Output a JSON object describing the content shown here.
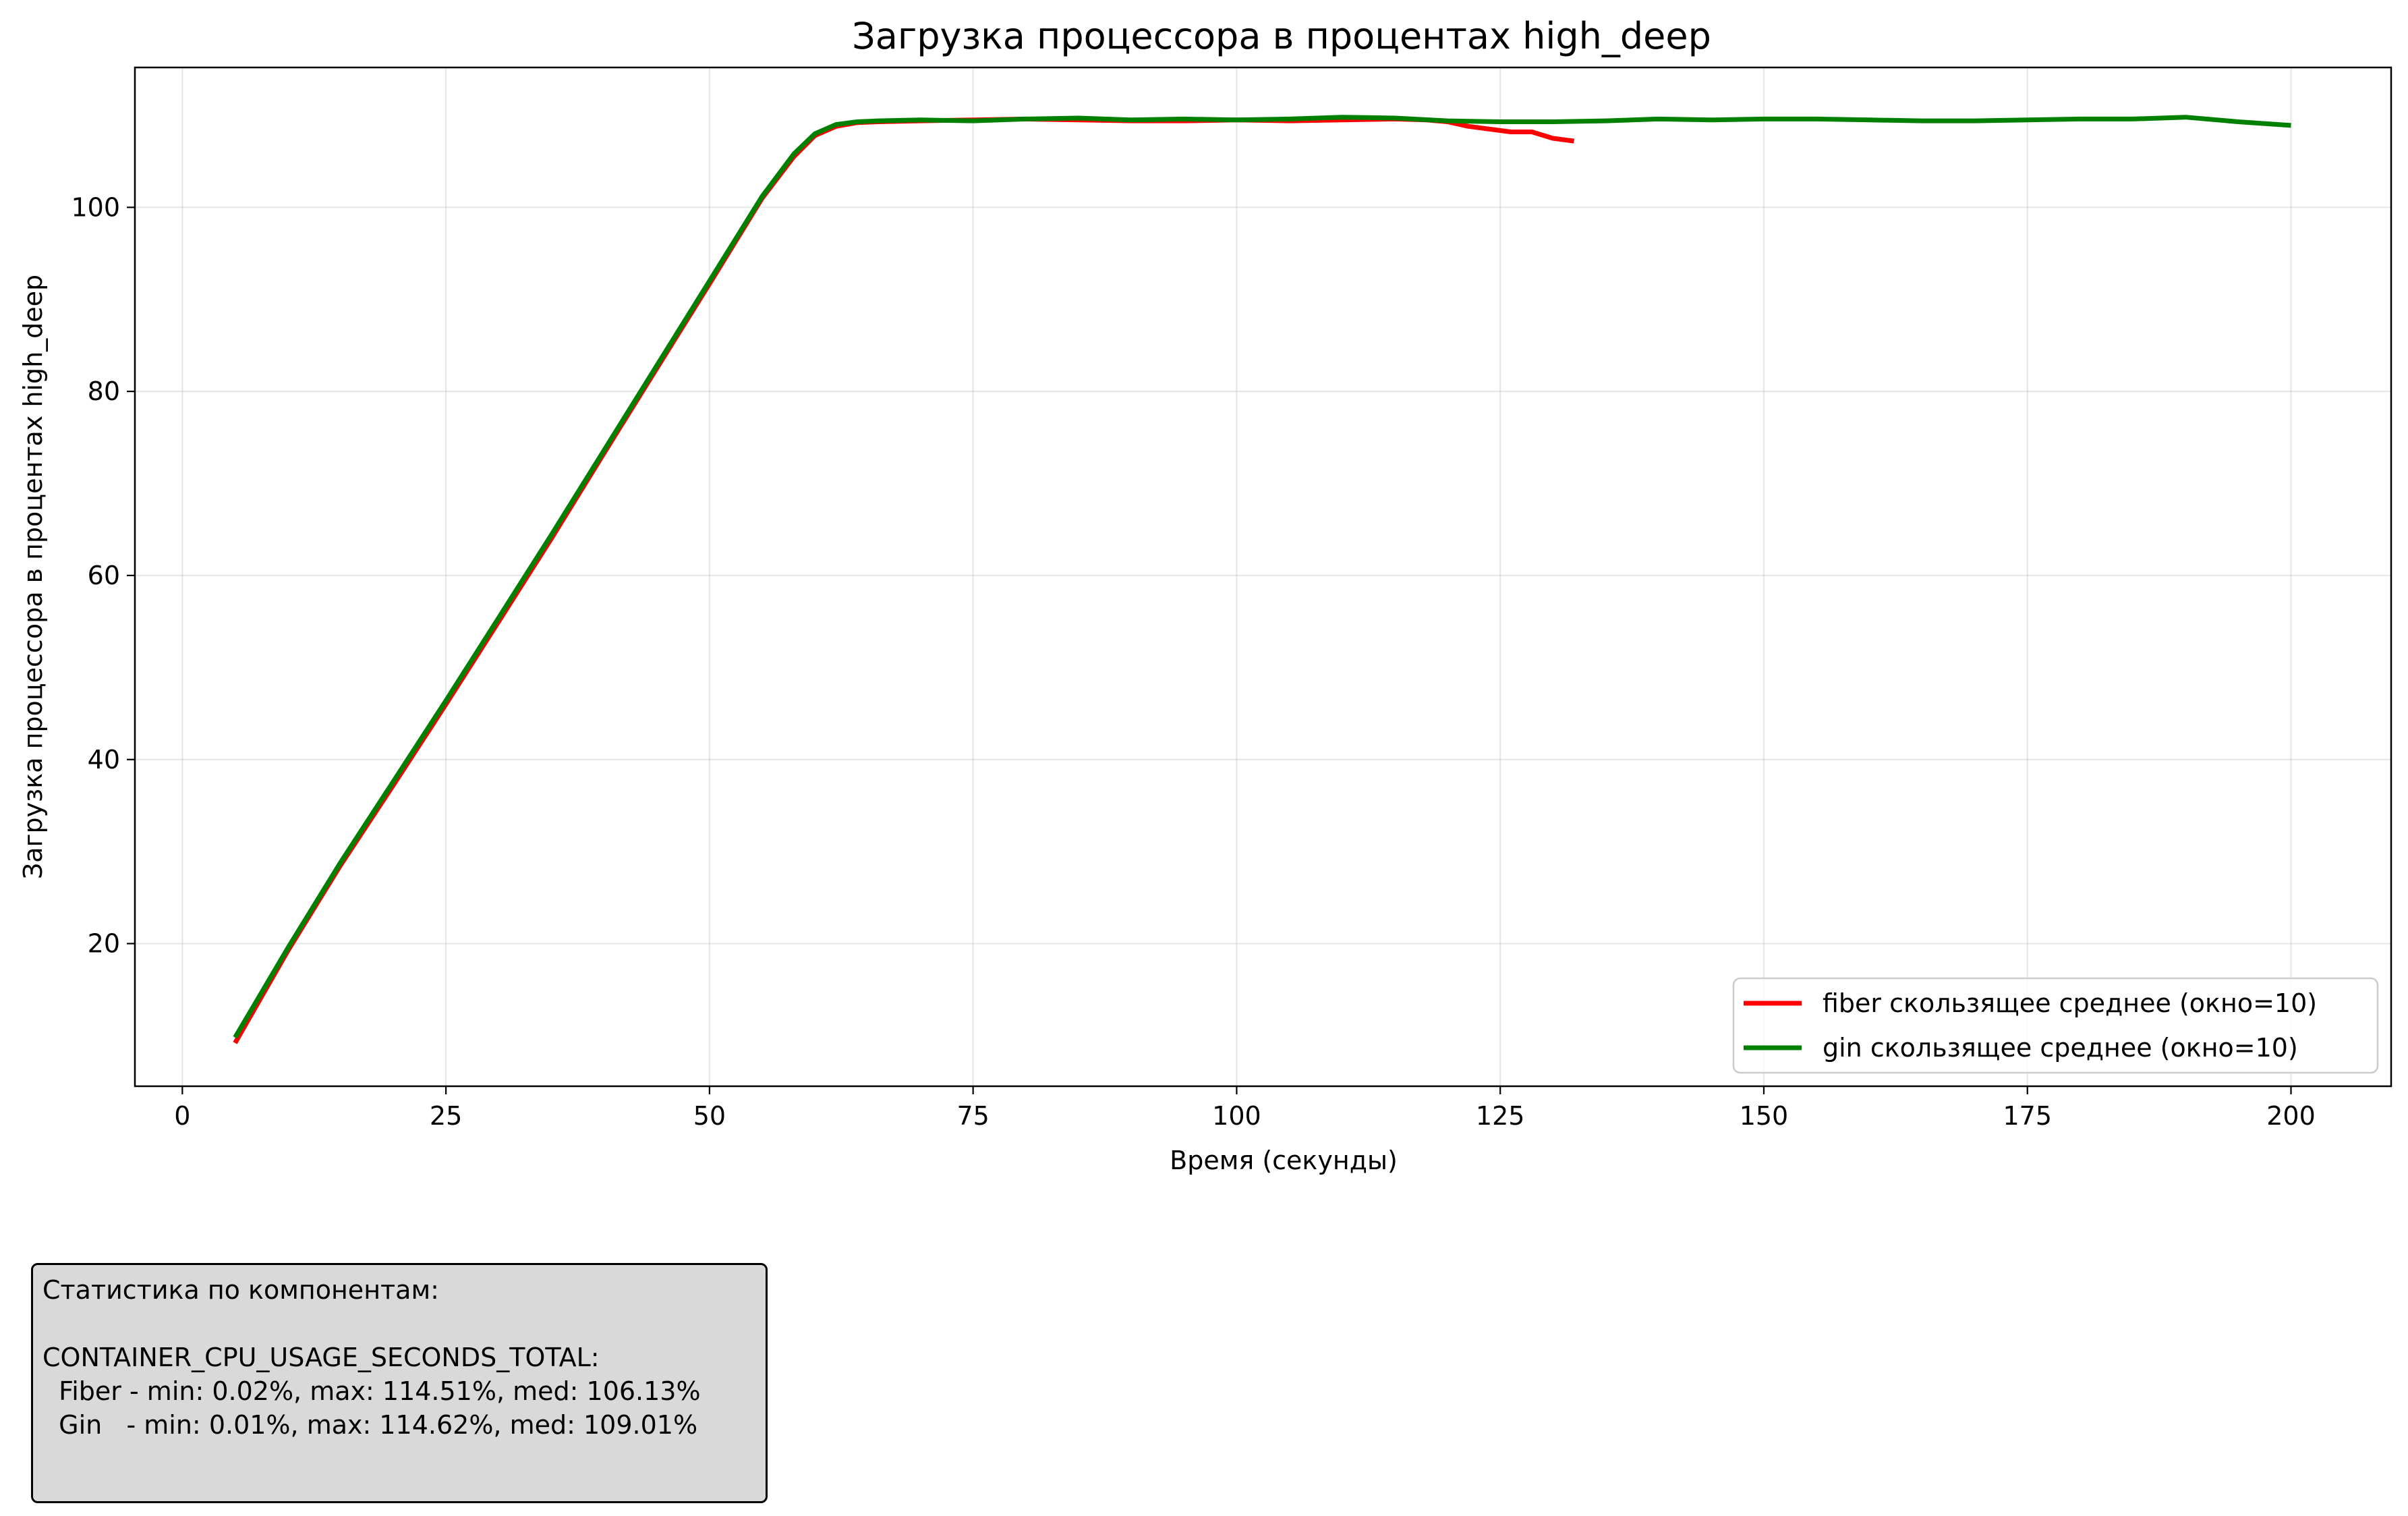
{
  "chart_data": {
    "type": "line",
    "title": "Загрузка процессора в процентах high_deep",
    "xlabel": "Время (секунды)",
    "ylabel": "Загрузка процессора в процентах high_deep",
    "xlim": [
      -4.5,
      209.5
    ],
    "ylim": [
      4.5,
      115.2
    ],
    "xticks": [
      0,
      25,
      50,
      75,
      100,
      125,
      150,
      175,
      200
    ],
    "yticks": [
      20,
      40,
      60,
      80,
      100
    ],
    "grid": true,
    "legend_position": "lower right",
    "series": [
      {
        "name": "fiber скользящее среднее (окно=10)",
        "color": "#ff0000",
        "x": [
          5,
          10,
          15,
          20,
          25,
          30,
          35,
          40,
          45,
          50,
          55,
          58,
          60,
          62,
          64,
          66,
          70,
          75,
          80,
          85,
          90,
          95,
          100,
          105,
          110,
          115,
          118,
          120,
          122,
          124,
          126,
          128,
          130,
          132
        ],
        "y": [
          9.2,
          19.2,
          28.5,
          37.2,
          46.0,
          55.0,
          64.0,
          73.3,
          82.5,
          91.7,
          101.0,
          105.5,
          107.8,
          108.8,
          109.2,
          109.3,
          109.4,
          109.5,
          109.6,
          109.5,
          109.4,
          109.4,
          109.5,
          109.4,
          109.5,
          109.6,
          109.5,
          109.3,
          108.8,
          108.5,
          108.2,
          108.2,
          107.5,
          107.2
        ]
      },
      {
        "name": "gin скользящее среднее (окно=10)",
        "color": "#008000",
        "x": [
          5,
          10,
          15,
          20,
          25,
          30,
          35,
          40,
          45,
          50,
          55,
          58,
          60,
          62,
          64,
          66,
          70,
          75,
          80,
          85,
          90,
          95,
          100,
          105,
          110,
          115,
          120,
          125,
          130,
          135,
          140,
          145,
          150,
          155,
          160,
          165,
          170,
          175,
          180,
          185,
          190,
          195,
          200
        ],
        "y": [
          9.8,
          19.5,
          28.8,
          37.6,
          46.4,
          55.4,
          64.4,
          73.6,
          82.8,
          92.0,
          101.2,
          105.8,
          108.0,
          109.0,
          109.3,
          109.4,
          109.5,
          109.4,
          109.6,
          109.7,
          109.5,
          109.6,
          109.5,
          109.6,
          109.8,
          109.7,
          109.4,
          109.3,
          109.3,
          109.4,
          109.6,
          109.5,
          109.6,
          109.6,
          109.5,
          109.4,
          109.4,
          109.5,
          109.6,
          109.6,
          109.8,
          109.3,
          108.9
        ]
      }
    ]
  },
  "stats_box": {
    "heading": "Статистика по компонентам:",
    "metric": "CONTAINER_CPU_USAGE_SECONDS_TOTAL:",
    "fiber_line": "  Fiber - min: 0.02%, max: 114.51%, med: 106.13%",
    "gin_line": "  Gin   - min: 0.01%, max: 114.62%, med: 109.01%",
    "background": "#d9d9d9"
  }
}
